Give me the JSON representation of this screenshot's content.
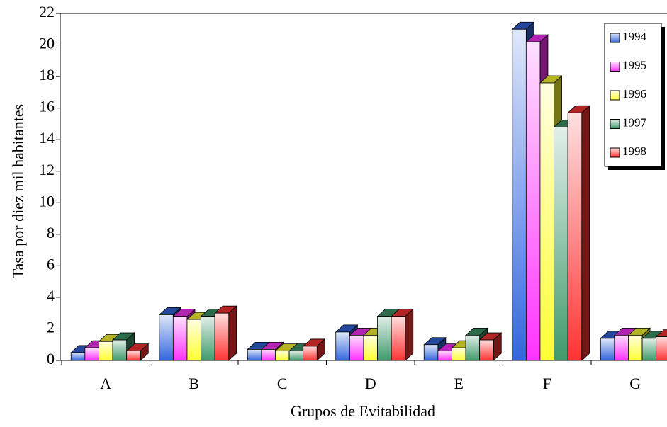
{
  "chart_data": {
    "type": "bar3d",
    "x_label": "Grupos de Evitabilidad",
    "y_label": "Tasa por diez mil habitantes",
    "categories": [
      "A",
      "B",
      "C",
      "D",
      "E",
      "F",
      "G"
    ],
    "series": [
      {
        "name": "1994",
        "color": "#3366dd",
        "values": [
          0.5,
          2.9,
          0.7,
          1.8,
          1.0,
          21.0,
          1.4
        ]
      },
      {
        "name": "1995",
        "color": "#ff33ff",
        "values": [
          0.8,
          2.8,
          0.7,
          1.6,
          0.6,
          20.2,
          1.6
        ]
      },
      {
        "name": "1996",
        "color": "#ffff33",
        "values": [
          1.2,
          2.6,
          0.6,
          1.6,
          0.8,
          17.6,
          1.6
        ]
      },
      {
        "name": "1997",
        "color": "#3f9a6a",
        "values": [
          1.3,
          2.8,
          0.6,
          2.8,
          1.6,
          14.8,
          1.4
        ]
      },
      {
        "name": "1998",
        "color": "#ff3333",
        "values": [
          0.6,
          3.0,
          0.9,
          2.8,
          1.3,
          15.7,
          1.5
        ]
      }
    ],
    "ylim": [
      0,
      22
    ],
    "yticks": [
      0,
      2,
      4,
      6,
      8,
      10,
      12,
      14,
      16,
      18,
      20,
      22
    ],
    "legend": "top-right"
  }
}
